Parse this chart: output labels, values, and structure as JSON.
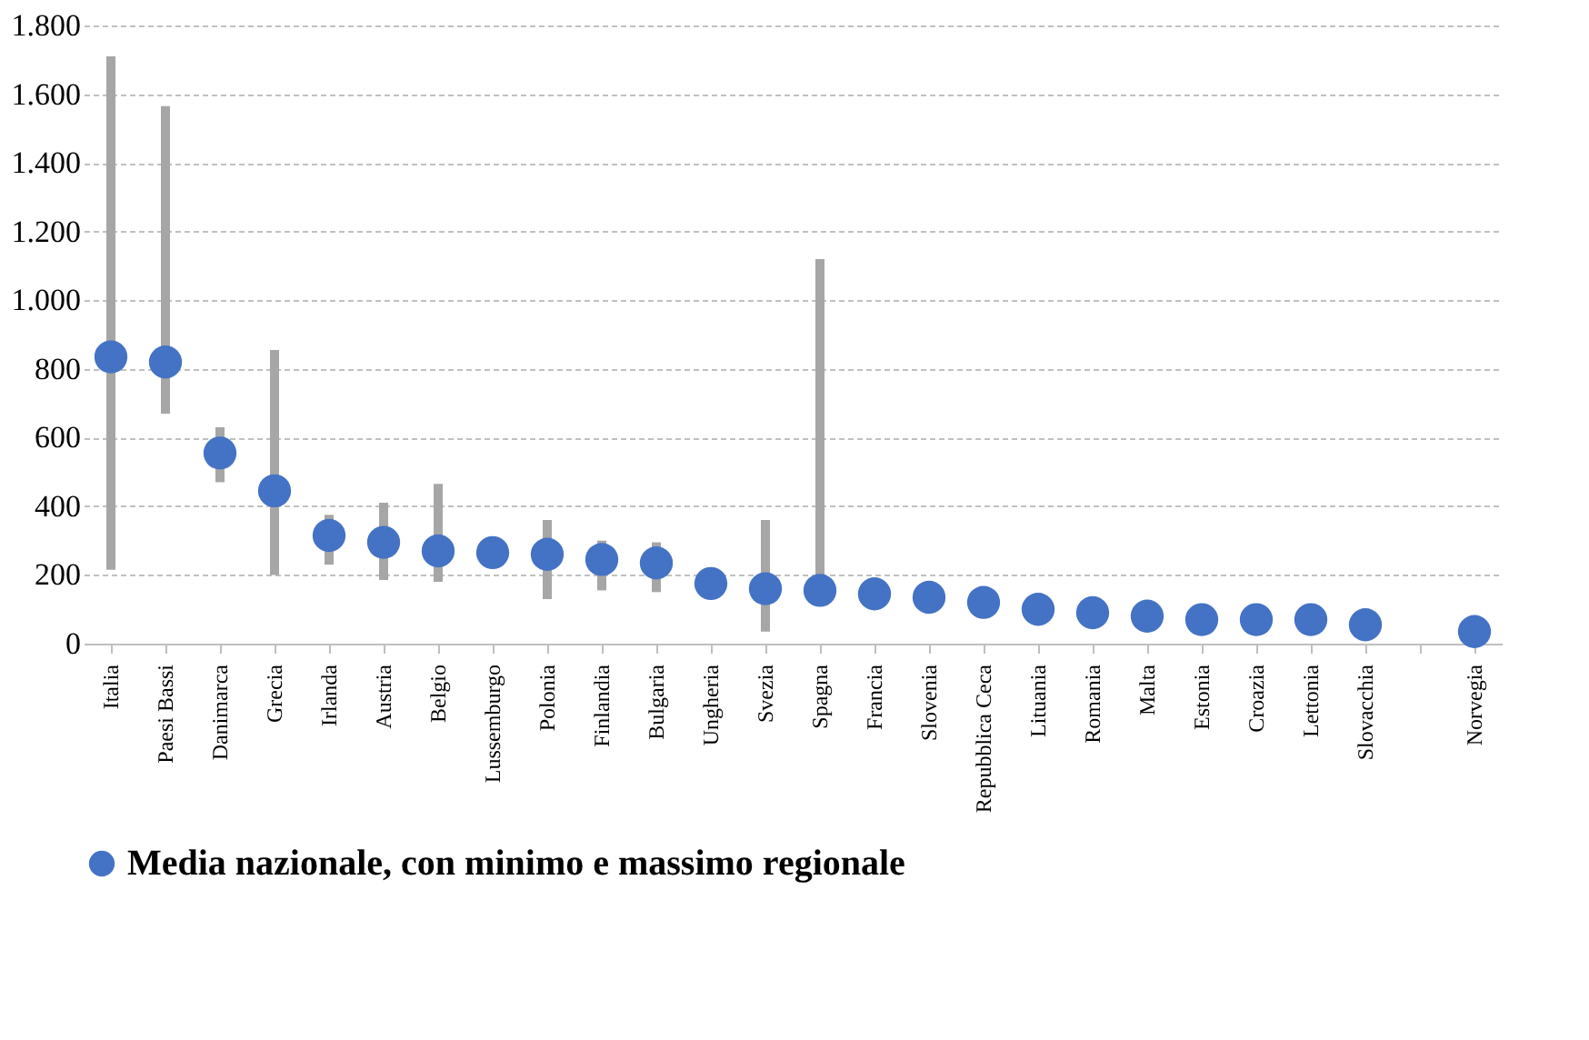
{
  "chart_data": {
    "type": "scatter",
    "categories": [
      "Italia",
      "Paesi Bassi",
      "Danimarca",
      "Grecia",
      "Irlanda",
      "Austria",
      "Belgio",
      "Lussemburgo",
      "Polonia",
      "Finlandia",
      "Bulgaria",
      "Ungheria",
      "Svezia",
      "Spagna",
      "Francia",
      "Slovenia",
      "Repubblica Ceca",
      "Lituania",
      "Romania",
      "Malta",
      "Estonia",
      "Croazia",
      "Lettonia",
      "Slovacchia",
      null,
      "Norvegia"
    ],
    "series": [
      {
        "name": "Media nazionale, con minimo e massimo regionale",
        "color": "#4472c4",
        "values": [
          835,
          820,
          555,
          445,
          315,
          295,
          270,
          265,
          260,
          245,
          235,
          175,
          160,
          155,
          145,
          135,
          120,
          100,
          90,
          80,
          70,
          70,
          70,
          55,
          null,
          35
        ],
        "errors": [
          [
            215,
            1710
          ],
          [
            670,
            1565
          ],
          [
            470,
            630
          ],
          [
            200,
            855
          ],
          [
            230,
            375
          ],
          [
            185,
            410
          ],
          [
            180,
            465
          ],
          null,
          [
            130,
            360
          ],
          [
            155,
            300
          ],
          [
            150,
            295
          ],
          null,
          [
            35,
            360
          ],
          [
            110,
            1120
          ],
          null,
          null,
          null,
          null,
          null,
          null,
          null,
          null,
          null,
          null,
          null,
          null
        ]
      }
    ],
    "ylim": [
      0,
      1800
    ],
    "yticks": [
      0,
      {
        "value": 200,
        "label": "200"
      },
      {
        "value": 400,
        "label": "400"
      },
      {
        "value": 600,
        "label": "600"
      },
      {
        "value": 800,
        "label": "800"
      },
      {
        "value": 1000,
        "label": "1.000"
      },
      {
        "value": 1200,
        "label": "1.200"
      },
      {
        "value": 1400,
        "label": "1.400"
      },
      {
        "value": 1600,
        "label": "1.600"
      },
      {
        "value": 1800,
        "label": "1.800"
      }
    ],
    "grid": "y",
    "legend": "bottom",
    "marker": "circle"
  }
}
